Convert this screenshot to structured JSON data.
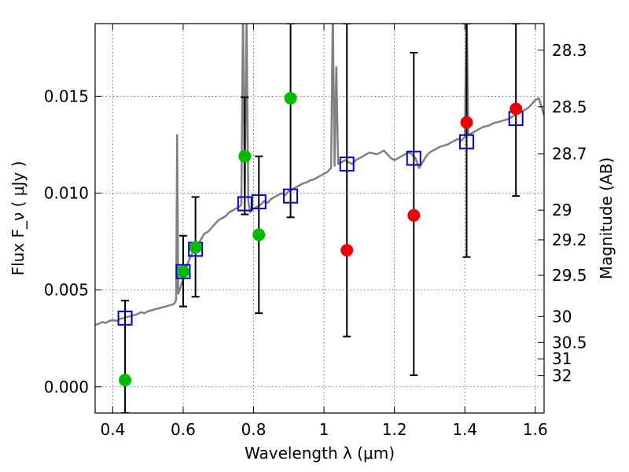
{
  "chart_data": {
    "type": "scatter",
    "xlabel": "Wavelength  λ (μm)",
    "ylabel": "Flux  F_ν  ( μJy )",
    "ylabel_right": "Magnitude (AB)",
    "xlim": [
      0.35,
      1.625
    ],
    "ylim": [
      -0.00135,
      0.01875
    ],
    "grid": true,
    "x_ticks": [
      {
        "value": 0.4,
        "label": "0.4"
      },
      {
        "value": 0.6,
        "label": "0.6"
      },
      {
        "value": 0.8,
        "label": "0.8"
      },
      {
        "value": 1.0,
        "label": "1"
      },
      {
        "value": 1.2,
        "label": "1.2"
      },
      {
        "value": 1.4,
        "label": "1.4"
      },
      {
        "value": 1.6,
        "label": "1.6"
      }
    ],
    "y_ticks": [
      {
        "value": 0.0,
        "label": "0.000"
      },
      {
        "value": 0.005,
        "label": "0.005"
      },
      {
        "value": 0.01,
        "label": "0.010"
      },
      {
        "value": 0.015,
        "label": "0.015"
      }
    ],
    "mag_ticks": [
      {
        "value": 28.3,
        "label": "28.3"
      },
      {
        "value": 28.5,
        "label": "28.5"
      },
      {
        "value": 28.7,
        "label": "28.7"
      },
      {
        "value": 29,
        "label": "29"
      },
      {
        "value": 29.2,
        "label": "29.2"
      },
      {
        "value": 29.5,
        "label": "29.5"
      },
      {
        "value": 30,
        "label": "30"
      },
      {
        "value": 30.5,
        "label": "30.5"
      },
      {
        "value": 31,
        "label": "31"
      },
      {
        "value": 32,
        "label": "32"
      }
    ],
    "colors": {
      "spectrum": "#808080",
      "model": "#0000cc",
      "green": "#00bb00",
      "red": "#ee0000",
      "errorbar": "#000000"
    },
    "spectrum": [
      [
        0.35,
        0.0032
      ],
      [
        0.36,
        0.00325
      ],
      [
        0.37,
        0.00335
      ],
      [
        0.38,
        0.0033
      ],
      [
        0.39,
        0.0034
      ],
      [
        0.4,
        0.00345
      ],
      [
        0.41,
        0.0034
      ],
      [
        0.42,
        0.0035
      ],
      [
        0.43,
        0.00355
      ],
      [
        0.44,
        0.0036
      ],
      [
        0.45,
        0.00365
      ],
      [
        0.46,
        0.0037
      ],
      [
        0.47,
        0.00375
      ],
      [
        0.48,
        0.00385
      ],
      [
        0.49,
        0.0038
      ],
      [
        0.5,
        0.0039
      ],
      [
        0.51,
        0.00395
      ],
      [
        0.52,
        0.004
      ],
      [
        0.53,
        0.00405
      ],
      [
        0.54,
        0.0041
      ],
      [
        0.55,
        0.00415
      ],
      [
        0.56,
        0.0042
      ],
      [
        0.57,
        0.00425
      ],
      [
        0.575,
        0.0043
      ],
      [
        0.58,
        0.0045
      ],
      [
        0.583,
        0.013
      ],
      [
        0.586,
        0.0048
      ],
      [
        0.59,
        0.005
      ],
      [
        0.6,
        0.0056
      ],
      [
        0.61,
        0.0062
      ],
      [
        0.62,
        0.0067
      ],
      [
        0.63,
        0.007
      ],
      [
        0.64,
        0.0073
      ],
      [
        0.65,
        0.0076
      ],
      [
        0.66,
        0.0079
      ],
      [
        0.67,
        0.008
      ],
      [
        0.68,
        0.0082
      ],
      [
        0.69,
        0.0084
      ],
      [
        0.7,
        0.0086
      ],
      [
        0.71,
        0.0087
      ],
      [
        0.72,
        0.0088
      ],
      [
        0.73,
        0.009
      ],
      [
        0.74,
        0.0091
      ],
      [
        0.75,
        0.0092
      ],
      [
        0.76,
        0.0093
      ],
      [
        0.765,
        0.0094
      ],
      [
        0.77,
        0.0195
      ],
      [
        0.775,
        0.0098
      ],
      [
        0.78,
        0.019
      ],
      [
        0.785,
        0.0096
      ],
      [
        0.79,
        0.009
      ],
      [
        0.8,
        0.0092
      ],
      [
        0.81,
        0.0093
      ],
      [
        0.82,
        0.0094
      ],
      [
        0.83,
        0.0096
      ],
      [
        0.84,
        0.0095
      ],
      [
        0.85,
        0.0097
      ],
      [
        0.86,
        0.0098
      ],
      [
        0.87,
        0.0099
      ],
      [
        0.88,
        0.01
      ],
      [
        0.89,
        0.0099
      ],
      [
        0.9,
        0.0101
      ],
      [
        0.91,
        0.0102
      ],
      [
        0.92,
        0.0103
      ],
      [
        0.93,
        0.0104
      ],
      [
        0.94,
        0.0105
      ],
      [
        0.95,
        0.01055
      ],
      [
        0.96,
        0.01065
      ],
      [
        0.97,
        0.0107
      ],
      [
        0.98,
        0.0108
      ],
      [
        0.99,
        0.0109
      ],
      [
        1.0,
        0.011
      ],
      [
        1.01,
        0.0111
      ],
      [
        1.02,
        0.0113
      ],
      [
        1.025,
        0.0195
      ],
      [
        1.03,
        0.0114
      ],
      [
        1.035,
        0.0165
      ],
      [
        1.04,
        0.0115
      ],
      [
        1.05,
        0.0116
      ],
      [
        1.06,
        0.0117
      ],
      [
        1.07,
        0.0116
      ],
      [
        1.08,
        0.0115
      ],
      [
        1.09,
        0.0117
      ],
      [
        1.1,
        0.0118
      ],
      [
        1.11,
        0.0119
      ],
      [
        1.12,
        0.012
      ],
      [
        1.13,
        0.0121
      ],
      [
        1.14,
        0.01205
      ],
      [
        1.15,
        0.012
      ],
      [
        1.16,
        0.0121
      ],
      [
        1.17,
        0.0122
      ],
      [
        1.18,
        0.012
      ],
      [
        1.19,
        0.0118
      ],
      [
        1.2,
        0.0117
      ],
      [
        1.21,
        0.0118
      ],
      [
        1.22,
        0.0119
      ],
      [
        1.23,
        0.012
      ],
      [
        1.24,
        0.0121
      ],
      [
        1.25,
        0.012
      ],
      [
        1.26,
        0.0118
      ],
      [
        1.27,
        0.0113
      ],
      [
        1.28,
        0.0116
      ],
      [
        1.29,
        0.0119
      ],
      [
        1.3,
        0.0121
      ],
      [
        1.31,
        0.0122
      ],
      [
        1.32,
        0.0123
      ],
      [
        1.33,
        0.0124
      ],
      [
        1.34,
        0.01245
      ],
      [
        1.35,
        0.0125
      ],
      [
        1.36,
        0.0126
      ],
      [
        1.37,
        0.0127
      ],
      [
        1.38,
        0.0128
      ],
      [
        1.39,
        0.0127
      ],
      [
        1.4,
        0.0129
      ],
      [
        1.405,
        0.0195
      ],
      [
        1.41,
        0.013
      ],
      [
        1.42,
        0.0131
      ],
      [
        1.43,
        0.0132
      ],
      [
        1.44,
        0.0133
      ],
      [
        1.45,
        0.0134
      ],
      [
        1.46,
        0.01345
      ],
      [
        1.47,
        0.0135
      ],
      [
        1.48,
        0.0136
      ],
      [
        1.49,
        0.01365
      ],
      [
        1.5,
        0.0137
      ],
      [
        1.51,
        0.01375
      ],
      [
        1.52,
        0.0138
      ],
      [
        1.53,
        0.0139
      ],
      [
        1.54,
        0.014
      ],
      [
        1.55,
        0.0141
      ],
      [
        1.56,
        0.0142
      ],
      [
        1.57,
        0.0143
      ],
      [
        1.58,
        0.0144
      ],
      [
        1.59,
        0.0146
      ],
      [
        1.6,
        0.0148
      ],
      [
        1.61,
        0.0149
      ],
      [
        1.625,
        0.014
      ]
    ],
    "model_points": [
      {
        "x": 0.435,
        "y": 0.00355
      },
      {
        "x": 0.6,
        "y": 0.00595
      },
      {
        "x": 0.635,
        "y": 0.0071
      },
      {
        "x": 0.775,
        "y": 0.00945
      },
      {
        "x": 0.815,
        "y": 0.00955
      },
      {
        "x": 0.905,
        "y": 0.00985
      },
      {
        "x": 1.065,
        "y": 0.0115
      },
      {
        "x": 1.255,
        "y": 0.0118
      },
      {
        "x": 1.405,
        "y": 0.01265
      },
      {
        "x": 1.545,
        "y": 0.01385
      }
    ],
    "green_points": [
      {
        "x": 0.435,
        "y": 0.00035,
        "yerr_low": -0.00135,
        "yerr_high": 0.00445
      },
      {
        "x": 0.6,
        "y": 0.00595,
        "yerr_low": 0.00415,
        "yerr_high": 0.0078
      },
      {
        "x": 0.635,
        "y": 0.0072,
        "yerr_low": 0.00465,
        "yerr_high": 0.0098
      },
      {
        "x": 0.775,
        "y": 0.0119,
        "yerr_low": 0.0089,
        "yerr_high": 0.01495
      },
      {
        "x": 0.815,
        "y": 0.00785,
        "yerr_low": 0.0038,
        "yerr_high": 0.0119
      },
      {
        "x": 0.905,
        "y": 0.0149,
        "yerr_low": 0.00875,
        "yerr_high": 0.01875
      }
    ],
    "red_points": [
      {
        "x": 1.065,
        "y": 0.00705,
        "yerr_low": 0.0026,
        "yerr_high": 0.01875
      },
      {
        "x": 1.255,
        "y": 0.00885,
        "yerr_low": 0.0006,
        "yerr_high": 0.01725
      },
      {
        "x": 1.405,
        "y": 0.01365,
        "yerr_low": 0.0067,
        "yerr_high": 0.01875
      },
      {
        "x": 1.545,
        "y": 0.01435,
        "yerr_low": 0.00985,
        "yerr_high": 0.01875
      }
    ]
  }
}
